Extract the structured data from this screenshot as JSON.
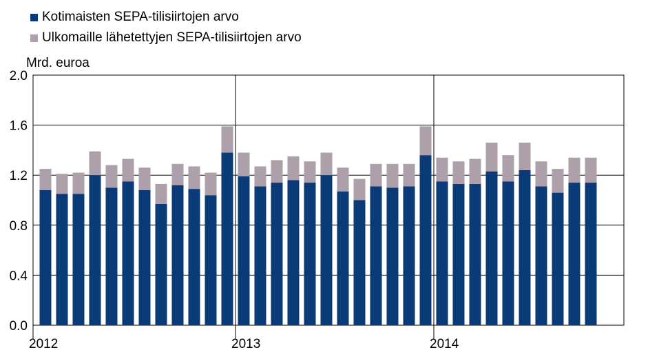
{
  "chart_data": {
    "type": "bar",
    "stacked": true,
    "ylabel": "Mrd. euroa",
    "ylim": [
      0,
      2.0
    ],
    "yticks": [
      "0.0",
      "0.4",
      "0.8",
      "1.2",
      "1.6",
      "2.0"
    ],
    "ytick_values": [
      0,
      0.4,
      0.8,
      1.2,
      1.6,
      2.0
    ],
    "year_labels": [
      "2012",
      "2013",
      "2014"
    ],
    "grid": true,
    "legend_placement": "top-left",
    "categories": [
      "2012-01",
      "2012-02",
      "2012-03",
      "2012-04",
      "2012-05",
      "2012-06",
      "2012-07",
      "2012-08",
      "2012-09",
      "2012-10",
      "2012-11",
      "2012-12",
      "2013-01",
      "2013-02",
      "2013-03",
      "2013-04",
      "2013-05",
      "2013-06",
      "2013-07",
      "2013-08",
      "2013-09",
      "2013-10",
      "2013-11",
      "2013-12",
      "2014-01",
      "2014-02",
      "2014-03",
      "2014-04",
      "2014-05",
      "2014-06",
      "2014-07",
      "2014-08",
      "2014-09",
      "2014-10"
    ],
    "series": [
      {
        "name": "Kotimaisten SEPA-tilisiirtojen arvo",
        "color": "#0b3a79",
        "values": [
          1.08,
          1.05,
          1.05,
          1.2,
          1.1,
          1.15,
          1.08,
          0.97,
          1.12,
          1.09,
          1.04,
          1.38,
          1.19,
          1.11,
          1.14,
          1.16,
          1.14,
          1.2,
          1.07,
          1.0,
          1.11,
          1.1,
          1.11,
          1.36,
          1.15,
          1.13,
          1.13,
          1.23,
          1.15,
          1.24,
          1.11,
          1.06,
          1.14,
          1.14
        ]
      },
      {
        "name": "Ulkomaille lähetettyjen SEPA-tilisiirtojen arvo",
        "color": "#ada0ab",
        "values": [
          0.17,
          0.16,
          0.17,
          0.19,
          0.18,
          0.18,
          0.18,
          0.16,
          0.17,
          0.18,
          0.18,
          0.21,
          0.19,
          0.16,
          0.18,
          0.19,
          0.17,
          0.18,
          0.19,
          0.17,
          0.18,
          0.19,
          0.18,
          0.23,
          0.19,
          0.18,
          0.2,
          0.23,
          0.21,
          0.22,
          0.2,
          0.19,
          0.2,
          0.2
        ]
      }
    ]
  }
}
